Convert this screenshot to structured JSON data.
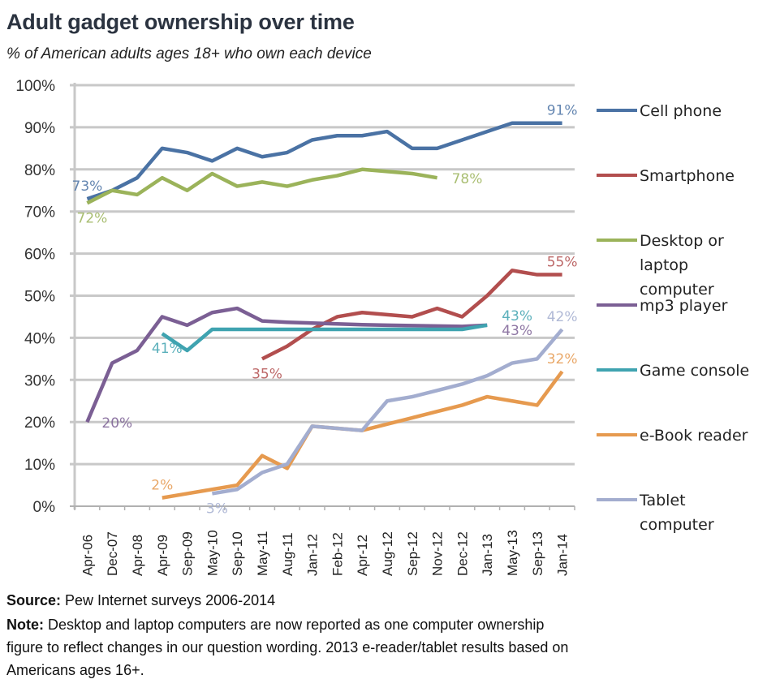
{
  "chart_data": {
    "type": "line",
    "title": "Adult gadget ownership over time",
    "subtitle": "% of American adults ages 18+ who own each device",
    "xlabel": "",
    "ylabel": "",
    "ylim": [
      0,
      100
    ],
    "y_ticks": [
      "0%",
      "10%",
      "20%",
      "30%",
      "40%",
      "50%",
      "60%",
      "70%",
      "80%",
      "90%",
      "100%"
    ],
    "grid": true,
    "legend_position": "right",
    "categories": [
      "Apr-06",
      "Dec-07",
      "Apr-08",
      "Apr-09",
      "Sep-09",
      "May-10",
      "Sep-10",
      "May-11",
      "Aug-11",
      "Jan-12",
      "Feb-12",
      "Apr-12",
      "Aug-12",
      "Sep-12",
      "Nov-12",
      "Dec-12",
      "Jan-13",
      "May-13",
      "Sep-13",
      "Jan-14"
    ],
    "series": [
      {
        "name": "Cell phone",
        "color": "#4a72a4",
        "values": [
          73,
          75,
          78,
          85,
          84,
          82,
          85,
          83,
          84,
          87,
          88,
          88,
          89,
          85,
          85,
          87,
          89,
          91,
          91,
          91
        ],
        "labels": [
          {
            "index": 0,
            "text": "73%",
            "pos": "above"
          },
          {
            "index": 19,
            "text": "91%",
            "pos": "above"
          }
        ]
      },
      {
        "name": "Smartphone",
        "color": "#b24e4e",
        "values": [
          null,
          null,
          null,
          null,
          null,
          null,
          null,
          35,
          38,
          42,
          45,
          46,
          45.5,
          45,
          47,
          45,
          50,
          56,
          55,
          55
        ],
        "labels": [
          {
            "index": 7,
            "text": "35%",
            "pos": "below"
          },
          {
            "index": 19,
            "text": "55%",
            "pos": "above"
          }
        ]
      },
      {
        "name": "Desktop or laptop computer",
        "legend_lines": [
          "Desktop or",
          "laptop",
          "computer"
        ],
        "color": "#9bb35a",
        "values": [
          72,
          75,
          74,
          78,
          75,
          79,
          76,
          77,
          76,
          77.5,
          78.5,
          80,
          79.5,
          79,
          78,
          null,
          null,
          null,
          null,
          null
        ],
        "labels": [
          {
            "index": 0,
            "text": "72%",
            "pos": "below"
          },
          {
            "index": 14,
            "text": "78%",
            "pos": "right"
          }
        ]
      },
      {
        "name": "mp3 player",
        "color": "#7b5f94",
        "values": [
          20,
          34,
          37,
          45,
          43,
          46,
          47,
          44,
          43.7,
          43.5,
          43.3,
          43.1,
          43,
          42.9,
          42.8,
          42.7,
          43,
          null,
          null,
          null
        ],
        "labels": [
          {
            "index": 0,
            "text": "20%",
            "pos": "right"
          },
          {
            "index": 16,
            "text": "43%",
            "pos": "right-lower"
          }
        ]
      },
      {
        "name": "Game console",
        "color": "#3fa3b0",
        "values": [
          null,
          null,
          null,
          41,
          37,
          42,
          42,
          42,
          42,
          42,
          42,
          42,
          42,
          42,
          42,
          42,
          43,
          null,
          null,
          null
        ],
        "labels": [
          {
            "index": 3,
            "text": "41%",
            "pos": "below"
          },
          {
            "index": 16,
            "text": "43%",
            "pos": "right-upper"
          }
        ]
      },
      {
        "name": "e-Book reader",
        "color": "#e69a4f",
        "values": [
          null,
          null,
          null,
          2,
          3,
          4,
          5,
          12,
          9,
          19,
          18.5,
          18,
          19.5,
          21,
          22.5,
          24,
          26,
          25,
          24,
          32
        ],
        "labels": [
          {
            "index": 3,
            "text": "2%",
            "pos": "above"
          },
          {
            "index": 19,
            "text": "32%",
            "pos": "above"
          }
        ]
      },
      {
        "name": "Tablet computer",
        "legend_lines": [
          "Tablet",
          "computer"
        ],
        "color": "#a3adcf",
        "values": [
          null,
          null,
          null,
          null,
          null,
          3,
          4,
          8,
          10,
          19,
          18.5,
          18,
          25,
          26,
          27.5,
          29,
          31,
          34,
          35,
          42
        ],
        "labels": [
          {
            "index": 5,
            "text": "3%",
            "pos": "below"
          },
          {
            "index": 19,
            "text": "42%",
            "pos": "above"
          }
        ]
      }
    ]
  },
  "footer": {
    "source_label": "Source:",
    "source_text": " Pew Internet surveys 2006-2014",
    "note_label": "Note:",
    "note_line1": " Desktop and laptop computers are now reported as one computer ownership",
    "note_line2": "figure to reflect changes in our question wording. 2013 e-reader/tablet results based on",
    "note_line3": "Americans ages 16+."
  }
}
